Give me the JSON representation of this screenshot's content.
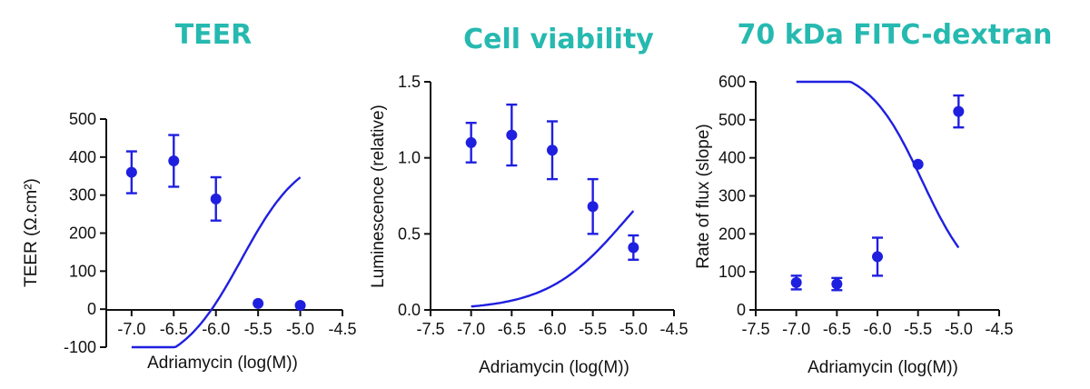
{
  "theme": {
    "title_color": "#26b9b0",
    "series_color": "#1f1fe0",
    "axis_color": "#111111"
  },
  "chart_data": [
    {
      "type": "scatter",
      "title": "TEER",
      "xlabel": "Adriamycin (log(M))",
      "ylabel": "TEER (Ω.cm²)",
      "xlim": [
        -7.3,
        -4.5
      ],
      "ylim": [
        -100,
        500
      ],
      "xticks": [
        -7.0,
        -6.5,
        -6.0,
        -5.5,
        -5.0,
        -4.5
      ],
      "xtick_labels": [
        "-7.0",
        "-6.5",
        "-6.0",
        "-5.5",
        "-5.0",
        "-4.5"
      ],
      "yticks": [
        -100,
        0,
        100,
        200,
        300,
        400,
        500
      ],
      "ytick_labels": [
        "-100",
        "0",
        "100",
        "200",
        "300",
        "400",
        "500"
      ],
      "series": [
        {
          "x": [
            -7.0,
            -6.5,
            -6.0,
            -5.5,
            -5.0
          ],
          "y": [
            360,
            390,
            290,
            15,
            10
          ],
          "err": [
            55,
            68,
            57,
            0,
            0
          ],
          "fit": {
            "top": 420,
            "bottom": -160,
            "logec50": -5.7,
            "hill": -1.2
          }
        }
      ]
    },
    {
      "type": "scatter",
      "title": "Cell viability",
      "xlabel": "Adriamycin (log(M))",
      "ylabel": "Luminescence (relative)",
      "xlim": [
        -7.5,
        -4.5
      ],
      "ylim": [
        0,
        1.5
      ],
      "xticks": [
        -7.5,
        -7.0,
        -6.5,
        -6.0,
        -5.5,
        -5.0,
        -4.5
      ],
      "xtick_labels": [
        "-7.5",
        "-7.0",
        "-6.5",
        "-6.0",
        "-5.5",
        "-5.0",
        "-4.5"
      ],
      "yticks": [
        0,
        0.5,
        1.0,
        1.5
      ],
      "ytick_labels": [
        "0.0",
        "0.5",
        "1.0",
        "1.5"
      ],
      "series": [
        {
          "x": [
            -7.0,
            -6.5,
            -6.0,
            -5.5,
            -5.0
          ],
          "y": [
            1.1,
            1.15,
            1.05,
            0.68,
            0.41
          ],
          "err": [
            0.13,
            0.2,
            0.19,
            0.18,
            0.08
          ],
          "fit": {
            "top": 1.18,
            "bottom": 0.0,
            "logec50": -5.1,
            "hill": -0.9
          }
        }
      ]
    },
    {
      "type": "scatter",
      "title": "70 kDa FITC-dextran",
      "xlabel": "Adriamycin (log(M))",
      "ylabel": "Rate of flux (slope)",
      "xlim": [
        -7.5,
        -4.5
      ],
      "ylim": [
        0,
        600
      ],
      "xticks": [
        -7.5,
        -7.0,
        -6.5,
        -6.0,
        -5.5,
        -5.0,
        -4.5
      ],
      "xtick_labels": [
        "-7.5",
        "-7.0",
        "-6.5",
        "-6.0",
        "-5.5",
        "-5.0",
        "-4.5"
      ],
      "yticks": [
        0,
        100,
        200,
        300,
        400,
        500,
        600
      ],
      "ytick_labels": [
        "0",
        "100",
        "200",
        "300",
        "400",
        "500",
        "600"
      ],
      "series": [
        {
          "x": [
            -7.0,
            -6.5,
            -6.0,
            -5.5,
            -5.0
          ],
          "y": [
            72,
            68,
            140,
            383,
            522
          ],
          "err": [
            18,
            16,
            50,
            0,
            42
          ],
          "fit": {
            "top": 640,
            "bottom": 40,
            "logec50": -5.45,
            "hill": 1.3
          }
        }
      ]
    }
  ]
}
